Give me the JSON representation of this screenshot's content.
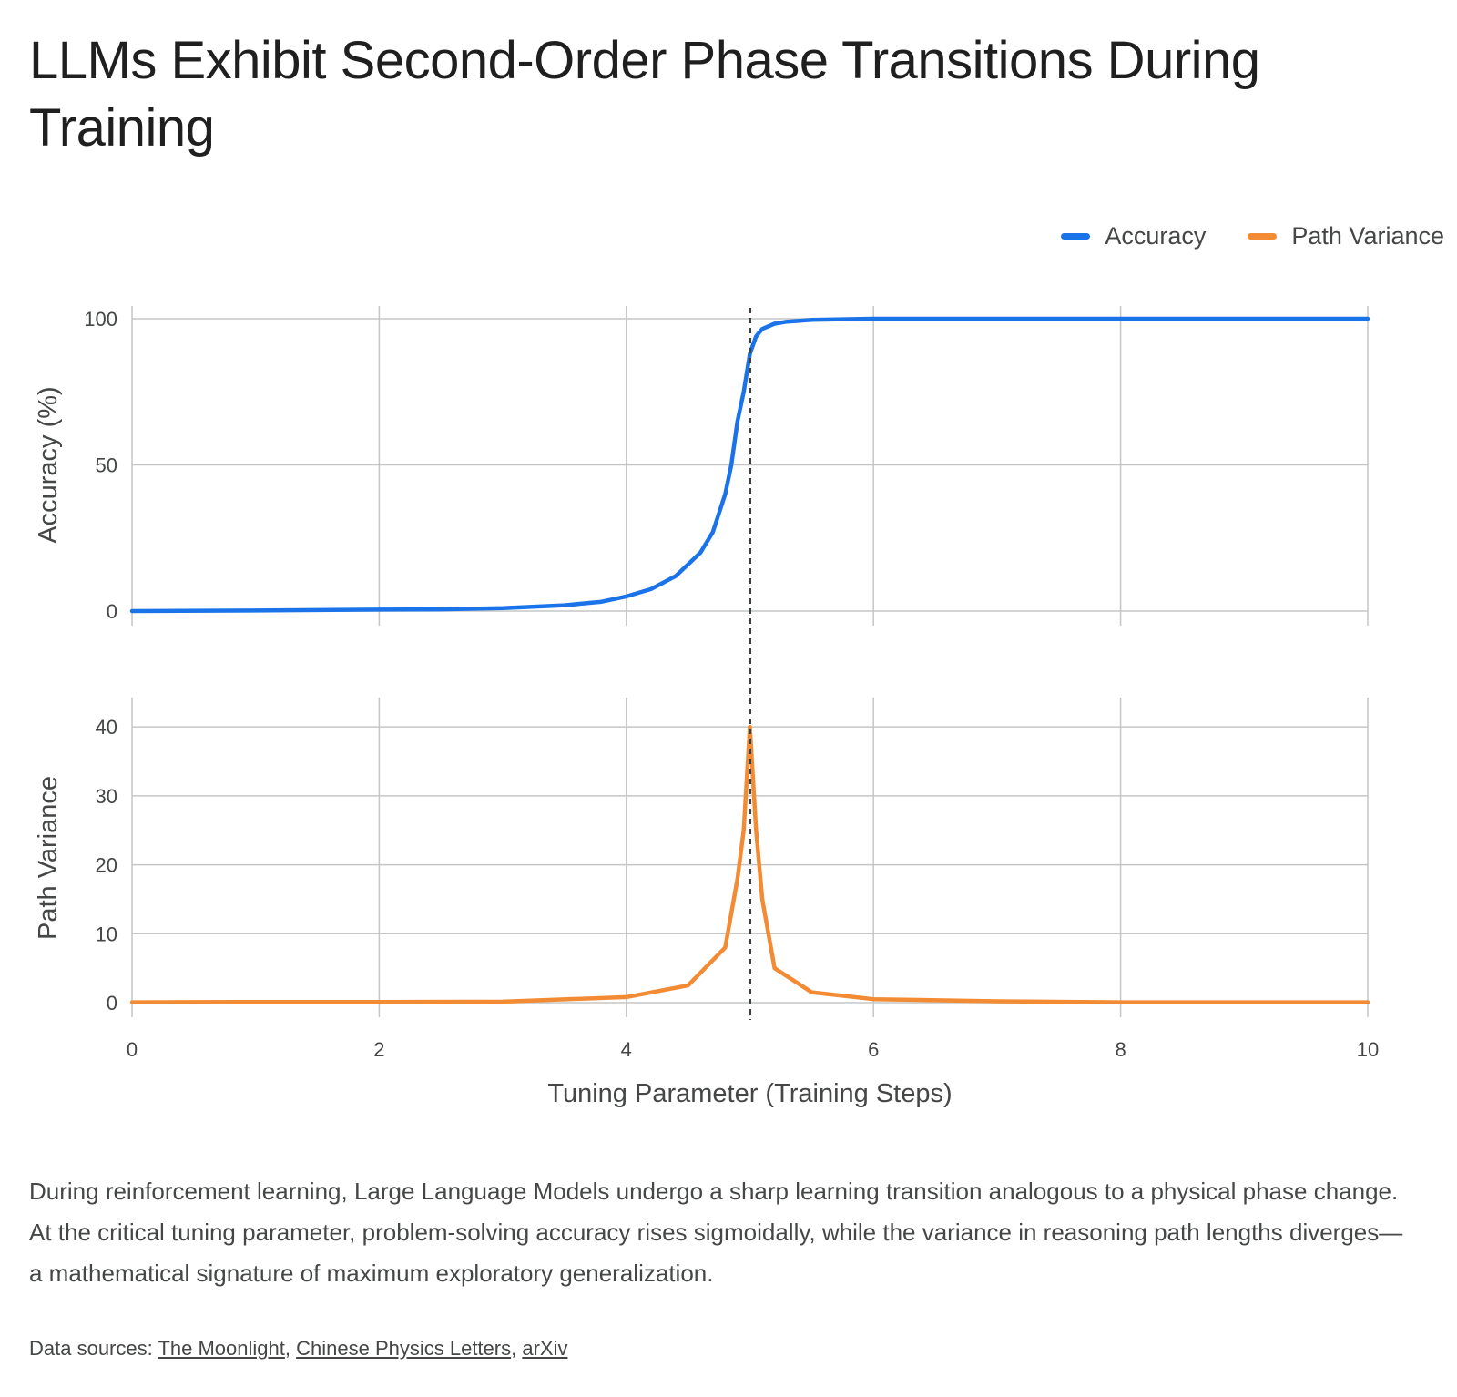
{
  "title": "LLMs Exhibit Second-Order Phase Transitions During Training",
  "description": "During reinforcement learning, Large Language Models undergo a sharp learning transition analogous to a physical phase change. At the critical tuning parameter, problem-solving accuracy rises sigmoidally, while the variance in reasoning path lengths diverges—a mathematical signature of maximum exploratory generalization.",
  "sources": {
    "label": "Data sources: ",
    "links": [
      "The Moonlight",
      "Chinese Physics Letters",
      "arXiv"
    ],
    "separator": ", "
  },
  "legend": [
    {
      "name": "Accuracy",
      "color": "#1a73e8"
    },
    {
      "name": "Path Variance",
      "color": "#f28b33"
    }
  ],
  "chart_data": {
    "type": "line",
    "xlabel": "Tuning Parameter (Training Steps)",
    "xlim": [
      0,
      10
    ],
    "x_ticks": [
      0,
      2,
      4,
      6,
      8,
      10
    ],
    "critical_point": 5.0,
    "grid": true,
    "legend_position": "top-right",
    "panels": [
      {
        "ylabel": "Accuracy (%)",
        "ylim": [
          0,
          100
        ],
        "y_ticks": [
          0,
          50,
          100
        ],
        "series": [
          {
            "name": "Accuracy",
            "color": "#1a73e8",
            "x": [
              0,
              1,
              2,
              2.5,
              3,
              3.5,
              3.8,
              4,
              4.2,
              4.4,
              4.6,
              4.7,
              4.8,
              4.85,
              4.9,
              4.95,
              5.0,
              5.05,
              5.1,
              5.2,
              5.3,
              5.5,
              6,
              7,
              8,
              10
            ],
            "values": [
              0,
              0.2,
              0.5,
              0.6,
              1.0,
              2.0,
              3.2,
              5.0,
              7.5,
              12,
              20,
              27,
              40,
              50,
              65,
              75,
              88,
              94,
              96.5,
              98.3,
              99,
              99.6,
              100,
              100,
              100,
              100
            ]
          }
        ]
      },
      {
        "ylabel": "Path Variance",
        "ylim": [
          0,
          42
        ],
        "y_ticks": [
          0,
          10,
          20,
          30,
          40
        ],
        "series": [
          {
            "name": "Path Variance",
            "color": "#f28b33",
            "x": [
              0,
              1,
              2,
              3,
              4,
              4.5,
              4.8,
              4.9,
              4.95,
              5.0,
              5.05,
              5.1,
              5.2,
              5.5,
              6,
              7,
              8,
              10
            ],
            "values": [
              0.05,
              0.1,
              0.1,
              0.15,
              0.8,
              2.5,
              8,
              18,
              25,
              40,
              25,
              15,
              5,
              1.5,
              0.5,
              0.2,
              0.05,
              0.05
            ]
          }
        ]
      }
    ]
  }
}
